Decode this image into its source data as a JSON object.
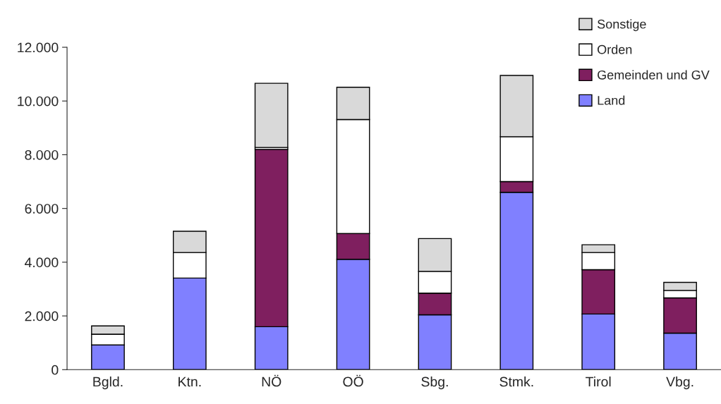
{
  "chart_data": {
    "type": "bar",
    "stacked": true,
    "categories": [
      "Bgld.",
      "Ktn.",
      "NÖ",
      "OÖ",
      "Sbg.",
      "Stmk.",
      "Tirol",
      "Vbg."
    ],
    "series": [
      {
        "name": "Land",
        "color": "#8080ff",
        "values": [
          920,
          3410,
          1600,
          4110,
          2040,
          6600,
          2070,
          1360
        ]
      },
      {
        "name": "Gemeinden und GV",
        "color": "#7f1f5f",
        "values": [
          0,
          0,
          6600,
          960,
          810,
          400,
          1650,
          1310
        ]
      },
      {
        "name": "Orden",
        "color": "#ffffff",
        "values": [
          400,
          950,
          70,
          4240,
          810,
          1670,
          640,
          280
        ]
      },
      {
        "name": "Sonstige",
        "color": "#d9d9d9",
        "values": [
          310,
          790,
          2390,
          1200,
          1220,
          2280,
          290,
          300
        ]
      }
    ],
    "ylim": [
      0,
      12000
    ],
    "yticks": [
      0,
      {
        "value": 2000,
        "label": "2.000"
      },
      {
        "value": 4000,
        "label": "4.000"
      },
      {
        "value": 6000,
        "label": "6.000"
      },
      {
        "value": 8000,
        "label": "8.000"
      },
      {
        "value": 10000,
        "label": "10.000"
      },
      {
        "value": 12000,
        "label": "12.000"
      }
    ],
    "grid": false,
    "legend": "top right"
  }
}
